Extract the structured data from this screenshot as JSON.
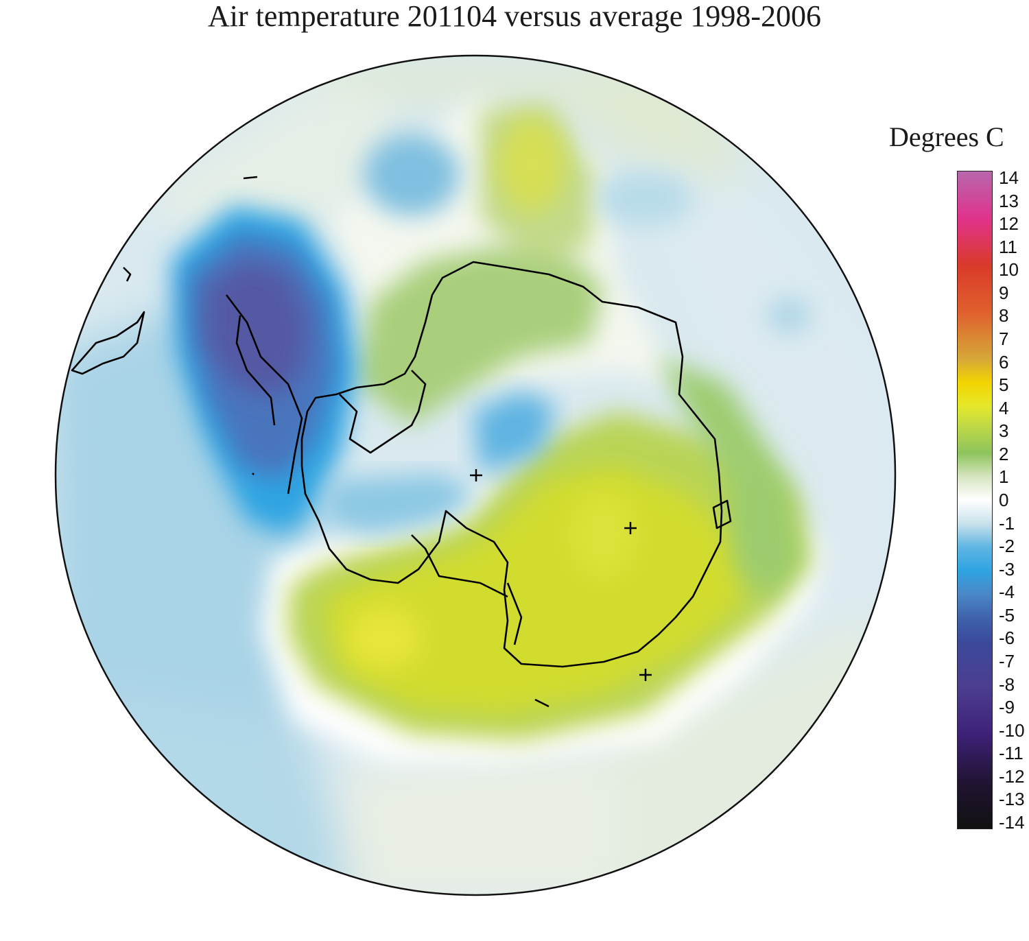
{
  "title": "Air temperature 201104 versus average 1998-2006",
  "legend": {
    "title": "Degrees C",
    "ticks": [
      "14",
      "13",
      "12",
      "11",
      "10",
      "9",
      "8",
      "7",
      "6",
      "5",
      "4",
      "3",
      "2",
      "1",
      "0",
      "-1",
      "-2",
      "-3",
      "-4",
      "-5",
      "-6",
      "-7",
      "-8",
      "-9",
      "-10",
      "-11",
      "-12",
      "-13",
      "-14"
    ],
    "range": [
      -14,
      14
    ],
    "colors": {
      "14": "#b866ad",
      "12": "#e0338c",
      "10": "#d93a2a",
      "8": "#e0602d",
      "6": "#d6a838",
      "5": "#f2d400",
      "4": "#e5e82a",
      "3": "#b8d64a",
      "2": "#8ec45c",
      "1": "#d6e5c0",
      "0": "#ffffff",
      "-1": "#c9e2ec",
      "-2": "#5fb6e3",
      "-3": "#2fa4e2",
      "-4": "#4a88c7",
      "-5": "#3f63ad",
      "-6": "#3b4a9c",
      "-8": "#4c3d8f",
      "-10": "#3d2178",
      "-12": "#211433",
      "-14": "#111111"
    }
  },
  "map": {
    "projection": "south polar stereographic",
    "feature": "Antarctica coastline",
    "markers": [
      "plus",
      "plus",
      "plus"
    ]
  }
}
